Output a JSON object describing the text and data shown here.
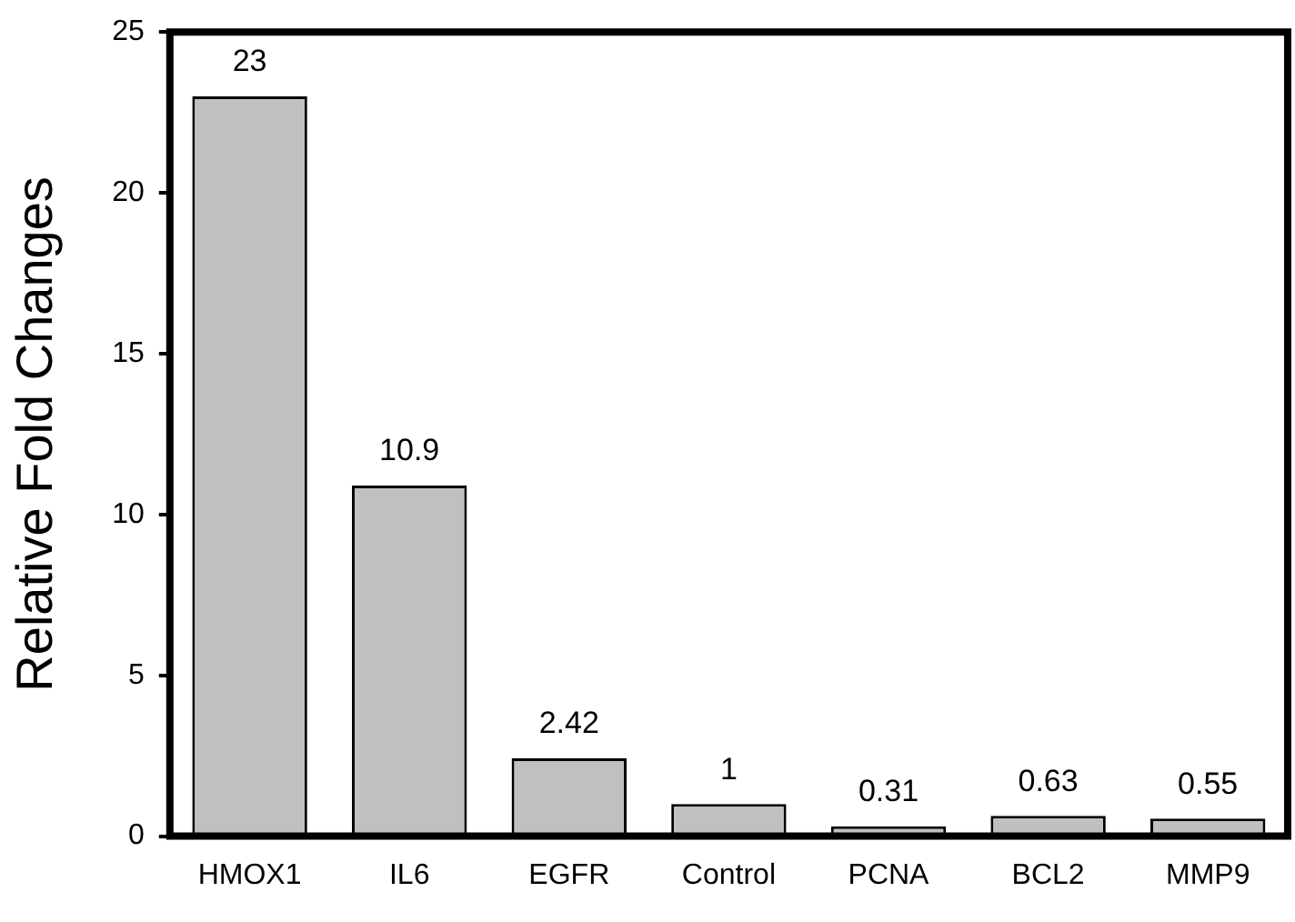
{
  "chart_data": {
    "type": "bar",
    "ylabel": "Relative Fold Changes",
    "categories": [
      "HMOX1",
      "IL6",
      "EGFR",
      "Control",
      "PCNA",
      "BCL2",
      "MMP9"
    ],
    "values": [
      23,
      10.9,
      2.42,
      1,
      0.31,
      0.63,
      0.55
    ],
    "color": "#c0c0c0",
    "ylim": [
      0,
      25
    ],
    "yticks": [
      0,
      5,
      10,
      15,
      20,
      25
    ],
    "data_labels": true,
    "grid": false,
    "legend": false
  }
}
